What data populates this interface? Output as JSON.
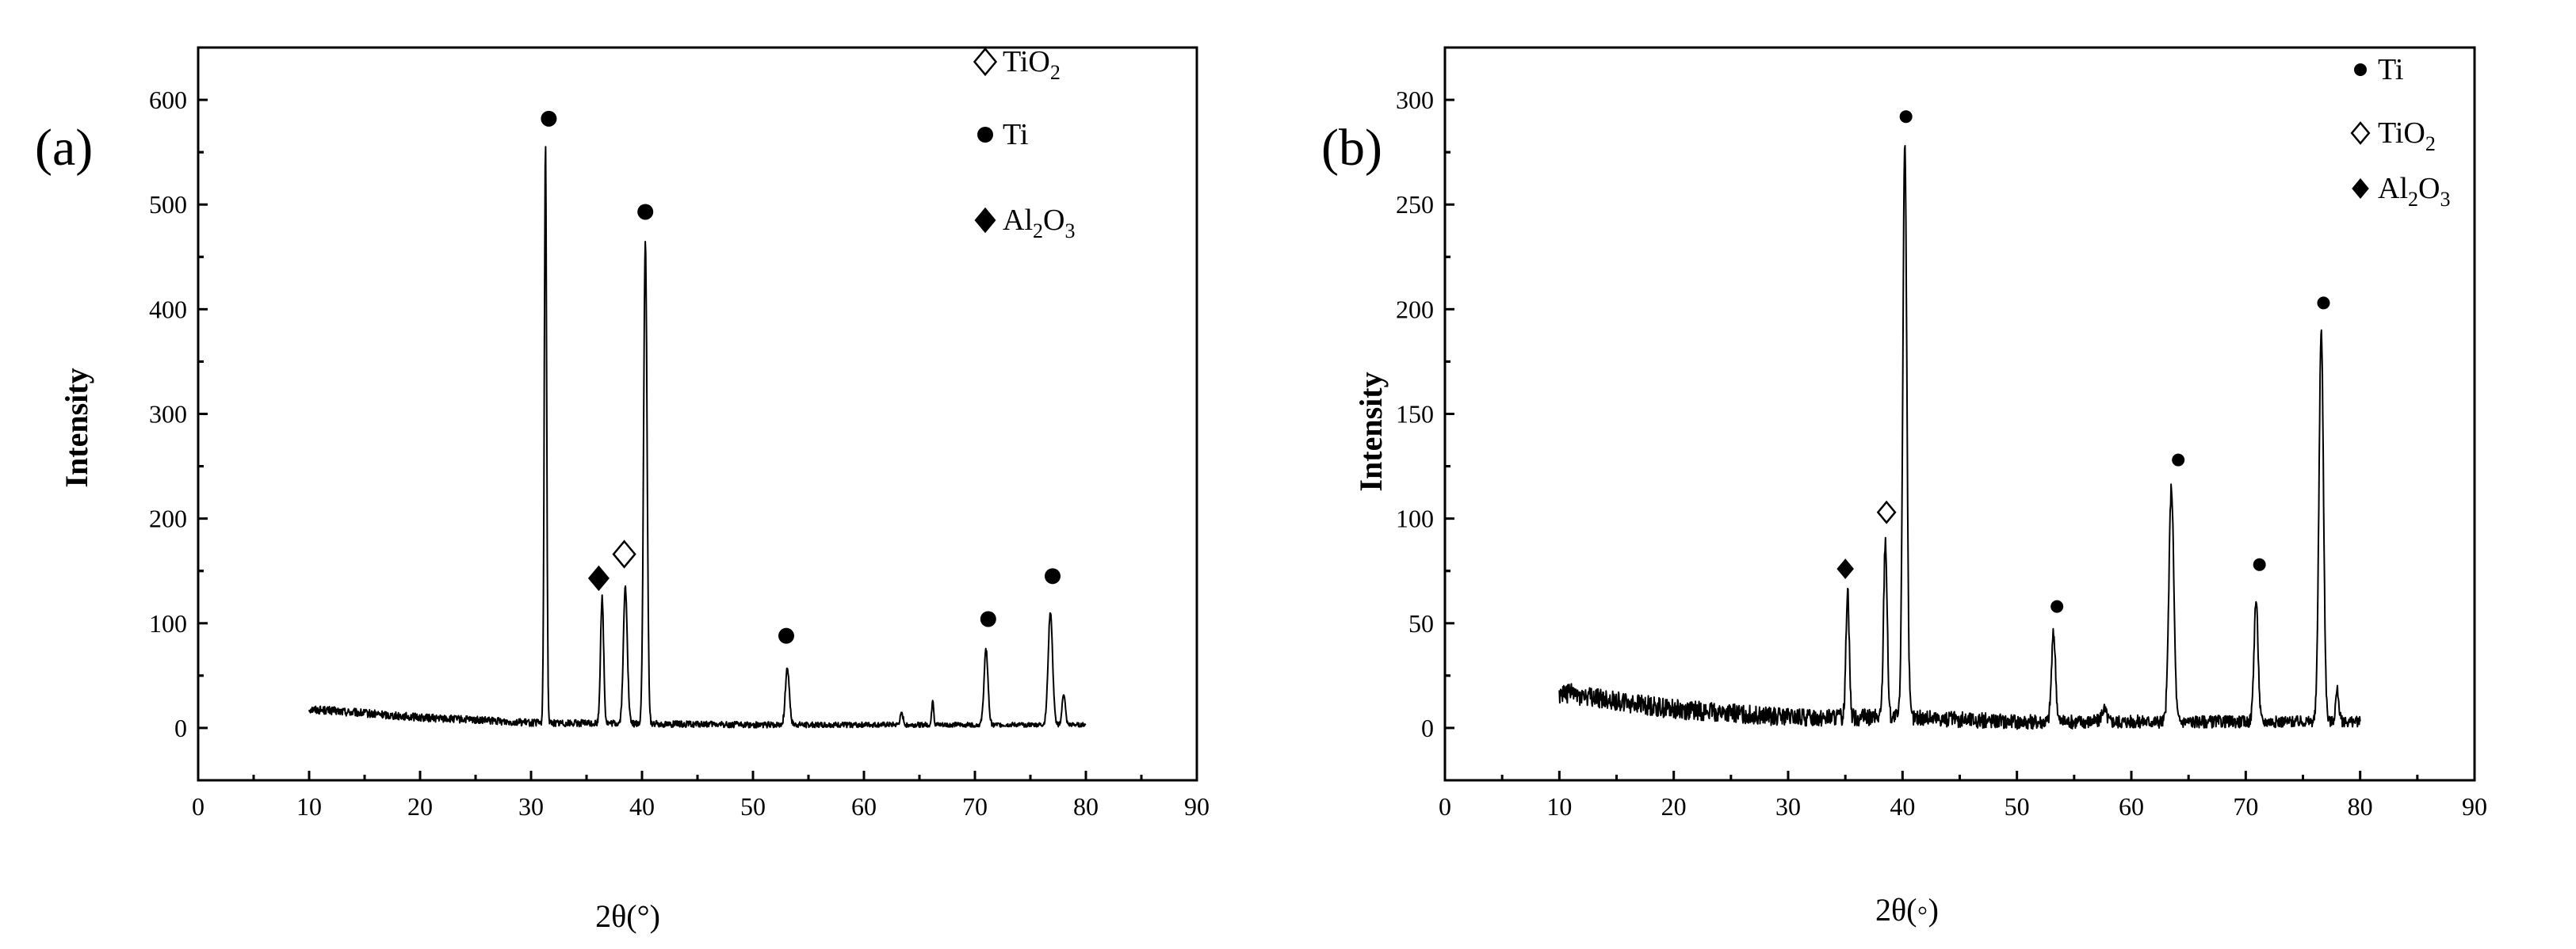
{
  "chart_data": [
    {
      "panel": "(a)",
      "type": "line",
      "title": "",
      "xlabel": "2θ(°)",
      "ylabel": "Intensity",
      "xlim": [
        0,
        90
      ],
      "ylim": [
        -50,
        650
      ],
      "xticks": [
        0,
        10,
        20,
        30,
        40,
        50,
        60,
        70,
        80,
        90
      ],
      "yticks": [
        0,
        100,
        200,
        300,
        400,
        500,
        600
      ],
      "x_range": [
        10,
        80
      ],
      "baseline": [
        [
          10,
          18
        ],
        [
          20,
          10
        ],
        [
          30,
          5
        ],
        [
          40,
          4
        ],
        [
          50,
          3
        ],
        [
          60,
          3
        ],
        [
          70,
          3
        ],
        [
          80,
          3
        ]
      ],
      "noise": 4,
      "peaks": [
        {
          "x": 31.3,
          "y": 550,
          "w": 0.15
        },
        {
          "x": 36.4,
          "y": 120,
          "w": 0.2
        },
        {
          "x": 38.5,
          "y": 130,
          "w": 0.25
        },
        {
          "x": 40.3,
          "y": 460,
          "w": 0.22
        },
        {
          "x": 53.1,
          "y": 55,
          "w": 0.25
        },
        {
          "x": 63.4,
          "y": 10,
          "w": 0.2
        },
        {
          "x": 66.2,
          "y": 25,
          "w": 0.12
        },
        {
          "x": 71.0,
          "y": 72,
          "w": 0.25
        },
        {
          "x": 76.8,
          "y": 108,
          "w": 0.28
        },
        {
          "x": 78.0,
          "y": 30,
          "w": 0.2
        }
      ],
      "markers": [
        {
          "x": 31.6,
          "y": 582,
          "symbol": "circle"
        },
        {
          "x": 40.3,
          "y": 493,
          "symbol": "circle"
        },
        {
          "x": 36.1,
          "y": 143,
          "symbol": "diamond-filled"
        },
        {
          "x": 38.4,
          "y": 166,
          "symbol": "diamond-open"
        },
        {
          "x": 53.0,
          "y": 88,
          "symbol": "circle"
        },
        {
          "x": 71.2,
          "y": 104,
          "symbol": "circle"
        },
        {
          "x": 77.0,
          "y": 145,
          "symbol": "circle"
        }
      ],
      "legend": [
        {
          "symbol": "diamond-open",
          "label": "TiO",
          "sub": "2",
          "tail": ""
        },
        {
          "symbol": "circle",
          "label": "Ti",
          "sub": "",
          "tail": ""
        },
        {
          "symbol": "diamond-filled",
          "label": "Al",
          "sub": "2",
          "tail": "O",
          "sub2": "3"
        }
      ],
      "legend_position": "top-right"
    },
    {
      "panel": "(b)",
      "type": "line",
      "title": "",
      "xlabel": "2θ(◦)",
      "ylabel": "Intensity",
      "xlim": [
        0,
        90
      ],
      "ylim": [
        -25,
        325
      ],
      "xticks": [
        0,
        10,
        20,
        30,
        40,
        50,
        60,
        70,
        80,
        90
      ],
      "yticks": [
        0,
        50,
        100,
        150,
        200,
        250,
        300
      ],
      "x_range": [
        10,
        80
      ],
      "baseline": [
        [
          10,
          17
        ],
        [
          15,
          13
        ],
        [
          20,
          9
        ],
        [
          25,
          7
        ],
        [
          30,
          5
        ],
        [
          40,
          5
        ],
        [
          50,
          3
        ],
        [
          60,
          3
        ],
        [
          70,
          3
        ],
        [
          80,
          3
        ]
      ],
      "noise": 5,
      "peaks": [
        {
          "x": 35.2,
          "y": 62,
          "w": 0.2
        },
        {
          "x": 38.5,
          "y": 85,
          "w": 0.22
        },
        {
          "x": 40.2,
          "y": 275,
          "w": 0.25
        },
        {
          "x": 53.2,
          "y": 42,
          "w": 0.25
        },
        {
          "x": 57.6,
          "y": 6,
          "w": 0.3
        },
        {
          "x": 63.5,
          "y": 112,
          "w": 0.3
        },
        {
          "x": 70.9,
          "y": 58,
          "w": 0.25
        },
        {
          "x": 76.6,
          "y": 186,
          "w": 0.28
        },
        {
          "x": 78.0,
          "y": 15,
          "w": 0.2
        }
      ],
      "markers": [
        {
          "x": 35.0,
          "y": 76,
          "symbol": "diamond-filled"
        },
        {
          "x": 38.6,
          "y": 103,
          "symbol": "diamond-open"
        },
        {
          "x": 40.3,
          "y": 292,
          "symbol": "circle"
        },
        {
          "x": 53.5,
          "y": 58,
          "symbol": "circle"
        },
        {
          "x": 64.1,
          "y": 128,
          "symbol": "circle"
        },
        {
          "x": 71.2,
          "y": 78,
          "symbol": "circle"
        },
        {
          "x": 76.8,
          "y": 203,
          "symbol": "circle"
        }
      ],
      "legend": [
        {
          "symbol": "circle",
          "label": "Ti",
          "sub": "",
          "tail": ""
        },
        {
          "symbol": "diamond-open",
          "label": "TiO",
          "sub": "2",
          "tail": ""
        },
        {
          "symbol": "diamond-filled",
          "label": "Al",
          "sub": "2",
          "tail": "O",
          "sub2": "3"
        }
      ],
      "legend_position": "top-right"
    }
  ]
}
